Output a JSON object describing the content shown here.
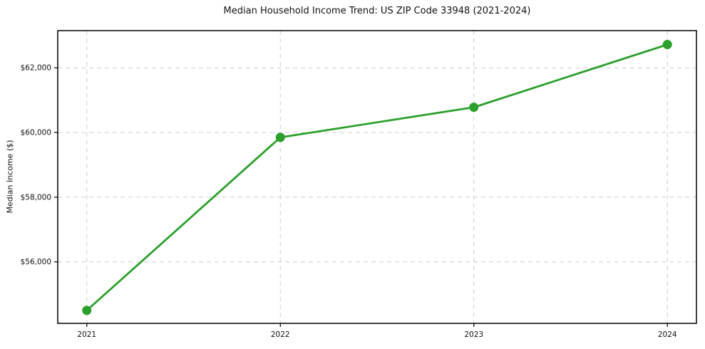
{
  "chart_data": {
    "type": "line",
    "title": "Median Household Income Trend: US ZIP Code 33948 (2021-2024)",
    "xlabel": "",
    "ylabel": "Median Income ($)",
    "categories": [
      "2021",
      "2022",
      "2023",
      "2024"
    ],
    "series": [
      {
        "name": "Median Household Income",
        "values": [
          54500,
          59850,
          60780,
          62720
        ]
      }
    ],
    "ylim": [
      54100,
      63150
    ],
    "yticks": [
      {
        "value": 56000,
        "label": "$56,000"
      },
      {
        "value": 58000,
        "label": "$58,000"
      },
      {
        "value": 60000,
        "label": "$60,000"
      },
      {
        "value": 62000,
        "label": "$62,000"
      }
    ],
    "grid": true,
    "grid_style": "dashed",
    "legend": "none",
    "colors": {
      "line": "#2ca02c",
      "marker": "#2ca02c",
      "grid": "#cccccc",
      "spine": "#000000",
      "text": "#111111",
      "background": "#ffffff"
    }
  }
}
